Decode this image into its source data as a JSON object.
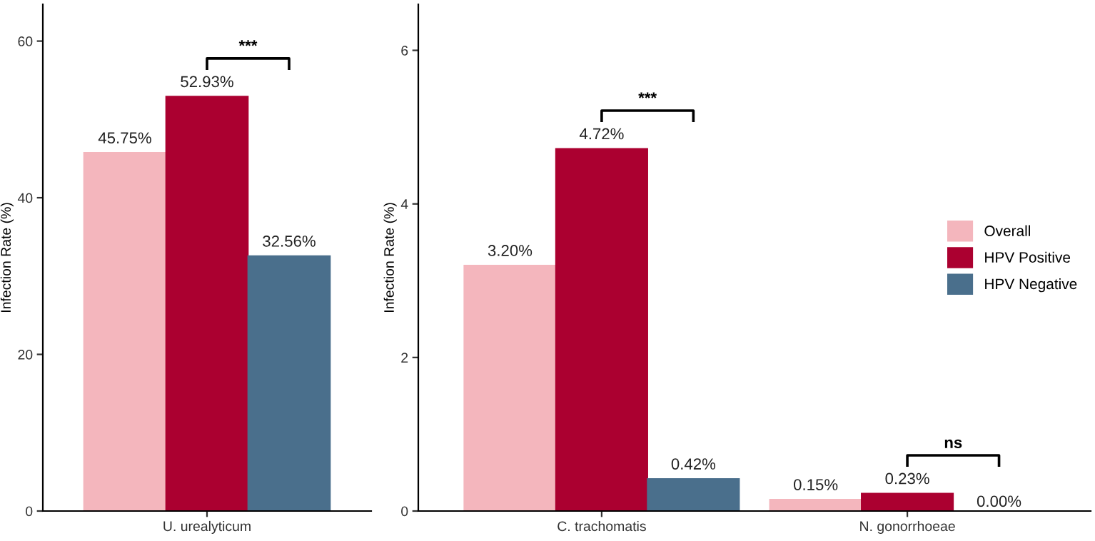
{
  "chart_data": [
    {
      "type": "bar",
      "ylabel": "Infection Rate (%)",
      "categories": [
        "U. urealyticum"
      ],
      "ylim": [
        0,
        64.7
      ],
      "yticks": [
        0,
        20,
        40,
        60
      ],
      "grid": false,
      "annotations": [
        "***"
      ],
      "series": [
        {
          "color": "#f4b6bd",
          "values": [
            45.75
          ],
          "value_labels": [
            "45.75%"
          ]
        },
        {
          "color": "#ab0030",
          "values": [
            52.93
          ],
          "value_labels": [
            "52.93%"
          ]
        },
        {
          "color": "#4a6f8c",
          "values": [
            32.56
          ],
          "value_labels": [
            "32.56%"
          ]
        }
      ]
    },
    {
      "type": "bar",
      "ylabel": "Infection Rate (%)",
      "categories": [
        "C. trachomatis",
        "N. gonorrhoeae"
      ],
      "ylim": [
        0,
        6.6
      ],
      "yticks": [
        0,
        2,
        4,
        6
      ],
      "legend": "right",
      "grid": false,
      "annotations": [
        "***",
        "ns"
      ],
      "series": [
        {
          "name": "Overall",
          "color": "#f4b6bd",
          "values": [
            3.2,
            0.15
          ],
          "value_labels": [
            "3.20%",
            "0.15%"
          ]
        },
        {
          "name": "HPV Positive",
          "color": "#ab0030",
          "values": [
            4.72,
            0.23
          ],
          "value_labels": [
            "4.72%",
            "0.23%"
          ]
        },
        {
          "name": "HPV Negative",
          "color": "#4a6f8c",
          "values": [
            0.42,
            0.0
          ],
          "value_labels": [
            "0.42%",
            "0.00%"
          ]
        }
      ]
    }
  ]
}
